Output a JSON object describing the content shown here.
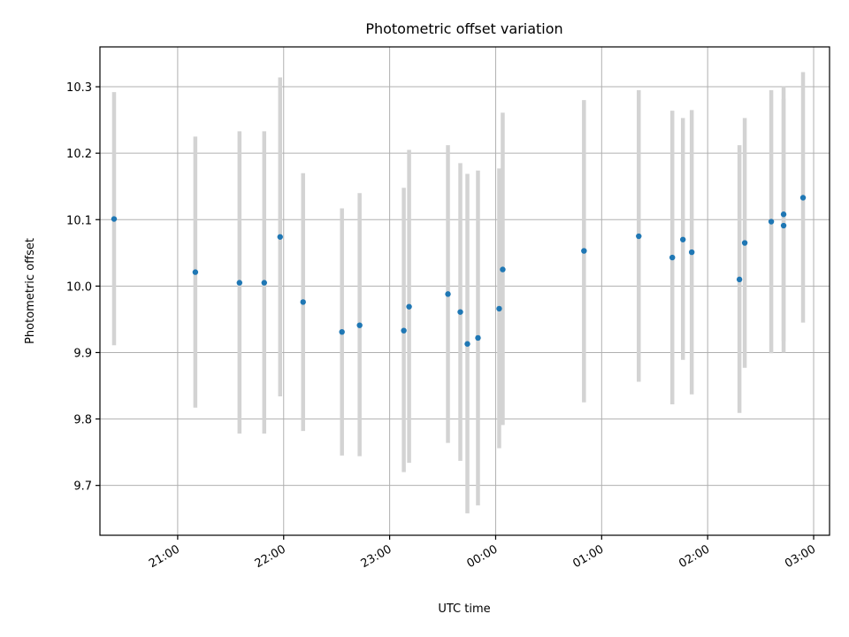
{
  "chart_data": {
    "type": "scatter",
    "title": "Photometric offset variation",
    "xlabel": "UTC time",
    "ylabel": "Photometric offset",
    "x_unit": "UTC time (HH:MM)",
    "xlim": [
      "20:16",
      "03:09"
    ],
    "ylim": [
      9.625,
      10.36
    ],
    "x_ticks": [
      "21:00",
      "22:00",
      "23:00",
      "00:00",
      "01:00",
      "02:00",
      "03:00"
    ],
    "y_ticks": [
      9.7,
      9.8,
      9.9,
      10.0,
      10.1,
      10.2,
      10.3
    ],
    "grid": true,
    "legend": "none",
    "marker_color": "#1f77b4",
    "errorbar_color": "#d3d3d3",
    "series": [
      {
        "points": [
          {
            "x": "20:24",
            "y": 10.101,
            "lo": 9.911,
            "hi": 10.292
          },
          {
            "x": "21:10",
            "y": 10.021,
            "lo": 9.817,
            "hi": 10.225
          },
          {
            "x": "21:35",
            "y": 10.005,
            "lo": 9.778,
            "hi": 10.233
          },
          {
            "x": "21:49",
            "y": 10.005,
            "lo": 9.778,
            "hi": 10.233
          },
          {
            "x": "21:58",
            "y": 10.074,
            "lo": 9.834,
            "hi": 10.314
          },
          {
            "x": "22:11",
            "y": 9.976,
            "lo": 9.782,
            "hi": 10.17
          },
          {
            "x": "22:33",
            "y": 9.931,
            "lo": 9.745,
            "hi": 10.117
          },
          {
            "x": "22:43",
            "y": 9.941,
            "lo": 9.744,
            "hi": 10.14
          },
          {
            "x": "23:08",
            "y": 9.933,
            "lo": 9.72,
            "hi": 10.148
          },
          {
            "x": "23:11",
            "y": 9.969,
            "lo": 9.734,
            "hi": 10.205
          },
          {
            "x": "23:33",
            "y": 9.988,
            "lo": 9.764,
            "hi": 10.212
          },
          {
            "x": "23:40",
            "y": 9.961,
            "lo": 9.737,
            "hi": 10.185
          },
          {
            "x": "23:44",
            "y": 9.913,
            "lo": 9.658,
            "hi": 10.169
          },
          {
            "x": "23:50",
            "y": 9.922,
            "lo": 9.67,
            "hi": 10.174
          },
          {
            "x": "00:02",
            "y": 9.966,
            "lo": 9.756,
            "hi": 10.177
          },
          {
            "x": "00:04",
            "y": 10.025,
            "lo": 9.791,
            "hi": 10.261
          },
          {
            "x": "00:50",
            "y": 10.053,
            "lo": 9.825,
            "hi": 10.28
          },
          {
            "x": "01:21",
            "y": 10.075,
            "lo": 9.856,
            "hi": 10.295
          },
          {
            "x": "01:40",
            "y": 10.043,
            "lo": 9.822,
            "hi": 10.264
          },
          {
            "x": "01:46",
            "y": 10.07,
            "lo": 9.889,
            "hi": 10.253
          },
          {
            "x": "01:51",
            "y": 10.051,
            "lo": 9.837,
            "hi": 10.265
          },
          {
            "x": "02:18",
            "y": 10.01,
            "lo": 9.809,
            "hi": 10.212
          },
          {
            "x": "02:21",
            "y": 10.065,
            "lo": 9.877,
            "hi": 10.253
          },
          {
            "x": "02:36",
            "y": 10.097,
            "lo": 9.899,
            "hi": 10.295
          },
          {
            "x": "02:43",
            "y": 10.108,
            "lo": 9.917,
            "hi": 10.301
          },
          {
            "x": "02:43",
            "y": 10.091,
            "lo": 9.9,
            "hi": 10.282
          },
          {
            "x": "02:54",
            "y": 10.133,
            "lo": 9.945,
            "hi": 10.322
          }
        ]
      }
    ]
  }
}
